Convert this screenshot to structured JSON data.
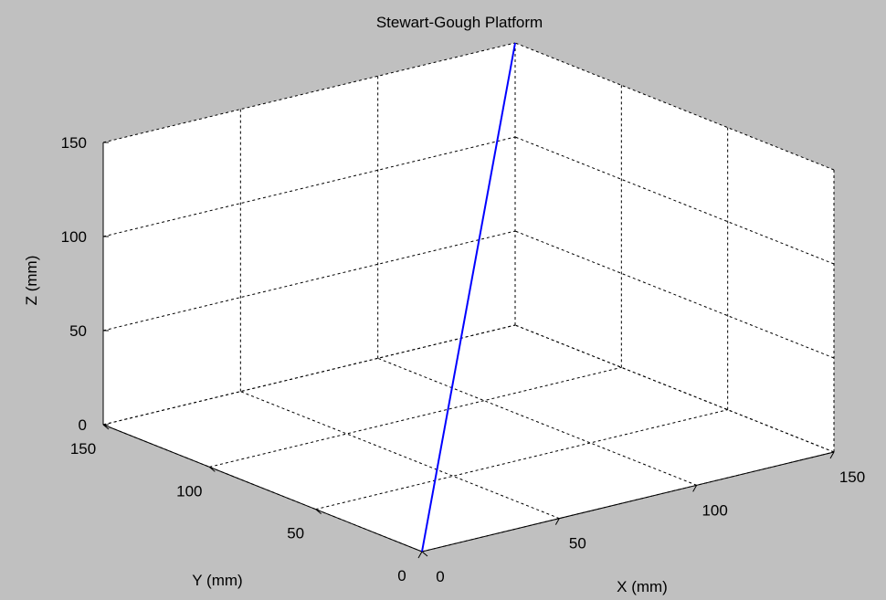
{
  "chart_data": {
    "type": "line",
    "title": "Stewart-Gough Platform",
    "xlabel": "X (mm)",
    "ylabel": "Y (mm)",
    "zlabel": "Z (mm)",
    "xlim": [
      0,
      150
    ],
    "ylim": [
      0,
      150
    ],
    "zlim": [
      0,
      150
    ],
    "x_ticks": [
      "0",
      "50",
      "100",
      "150"
    ],
    "y_ticks": [
      "0",
      "50",
      "100",
      "150"
    ],
    "z_ticks": [
      "0",
      "50",
      "100",
      "150"
    ],
    "grid": true,
    "background": "#c0c0c0",
    "axes_color": "#ffffff",
    "series": [
      {
        "color": "#0000ff",
        "x": [
          0,
          150
        ],
        "y": [
          0,
          150
        ],
        "z": [
          0,
          150
        ]
      }
    ]
  }
}
